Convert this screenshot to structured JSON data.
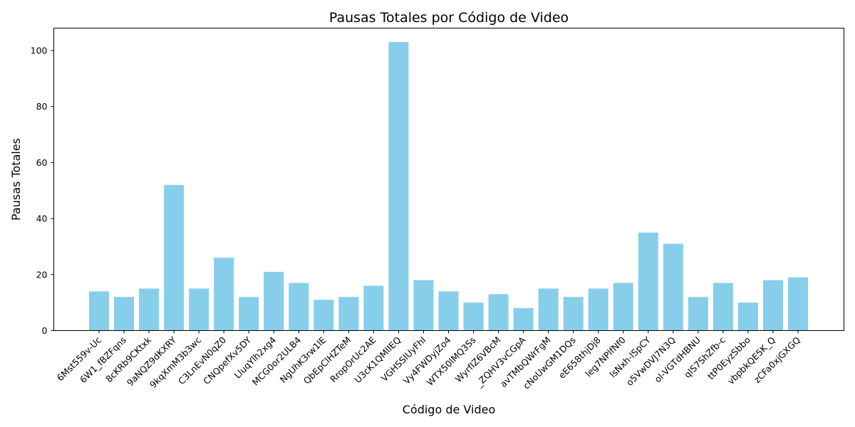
{
  "chart_data": {
    "type": "bar",
    "title": "Pausas Totales por Código de Video",
    "xlabel": "Código de Video",
    "ylabel": "Pausas Totales",
    "ylim": [
      0,
      108
    ],
    "yticks": [
      0,
      20,
      40,
      60,
      80,
      100
    ],
    "bar_color": "#87ceeb",
    "grid": false,
    "categories": [
      "6Mst559v-Uc",
      "6W1_fBZFqns",
      "8cKRb9CKtxk",
      "9aNQZ9dKXRY",
      "9kqXmM3b3wc",
      "C3LnEvN0qZ0",
      "CNQpefXv5DY",
      "LluqYlh2xg4",
      "MCG0or2ULB4",
      "NgUhK3rw1lE",
      "QbEpClHZTeM",
      "RropOrUc2AE",
      "U3cK1QMlIEQ",
      "VGHSSIUyFhI",
      "Vy4FWDyjZo4",
      "WTX50lMQ3Ss",
      "WyrfIZ6VBcM",
      "_ZQHV3vCGpA",
      "avTMbQWrFgM",
      "cNoUwGM1DQs",
      "eE658thjDj8",
      "leg7NPlfNf0",
      "lsNxh-lSpCY",
      "o5VwDVJ7N3Q",
      "ol-VGTdHBNU",
      "qlS7ShZfb-c",
      "ttP0EyzSbbo",
      "vbpbkQE5K_Q",
      "zCFa0xjGXGQ"
    ],
    "values": [
      14,
      12,
      15,
      52,
      15,
      26,
      12,
      21,
      17,
      11,
      12,
      16,
      103,
      18,
      14,
      10,
      13,
      8,
      15,
      12,
      15,
      17,
      35,
      31,
      12,
      17,
      10,
      18,
      19
    ]
  }
}
